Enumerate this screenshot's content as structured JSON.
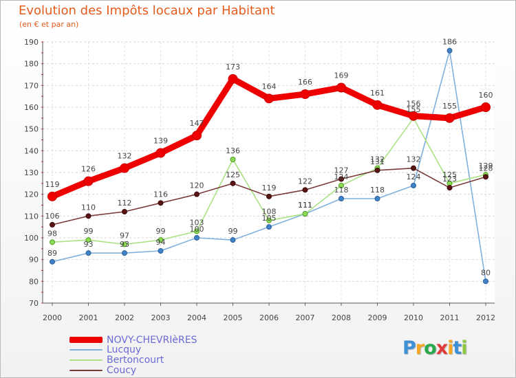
{
  "header": {
    "title": "Evolution des Impôts locaux par Habitant",
    "subtitle": "(en € et par an)"
  },
  "chart_data": {
    "type": "line",
    "title": "Evolution des Impôts locaux par Habitant",
    "subtitle": "(en € et par an)",
    "xlabel": "",
    "ylabel": "",
    "categories": [
      "2000",
      "2001",
      "2002",
      "2003",
      "2004",
      "2005",
      "2006",
      "2007",
      "2008",
      "2009",
      "2010",
      "2011",
      "2012"
    ],
    "ylim": [
      70,
      190
    ],
    "yticks": [
      70,
      80,
      90,
      100,
      110,
      120,
      130,
      140,
      150,
      160,
      170,
      180,
      190
    ],
    "grid": "horizontal dashed",
    "legend_position": "bottom-left",
    "series": [
      {
        "name": "NOVY-CHEVRIèRES",
        "color": "#ee0000",
        "values": [
          119,
          126,
          132,
          139,
          147,
          173,
          164,
          166,
          169,
          161,
          156,
          155,
          160
        ]
      },
      {
        "name": "Lucquy",
        "color": "#6aa0d4",
        "values": [
          89,
          93,
          93,
          94,
          100,
          99,
          105,
          111,
          118,
          118,
          124,
          186,
          80
        ]
      },
      {
        "name": "Bertoncourt",
        "color": "#a4e07a",
        "values": [
          98,
          99,
          97,
          99,
          103,
          136,
          108,
          111,
          124,
          132,
          155,
          125,
          129
        ]
      },
      {
        "name": "Coucy",
        "color": "#6b2a2a",
        "values": [
          106,
          110,
          112,
          116,
          120,
          125,
          119,
          122,
          127,
          131,
          132,
          123,
          128
        ]
      }
    ]
  },
  "logo": {
    "letters": [
      "P",
      "r",
      "o",
      "x",
      "i",
      "t",
      "i"
    ],
    "colors": [
      "#3d8fd6",
      "#f5a623",
      "#2aa84a",
      "#e13a3a",
      "#f5a623",
      "#3d8fd6",
      "#8dc63f"
    ]
  }
}
